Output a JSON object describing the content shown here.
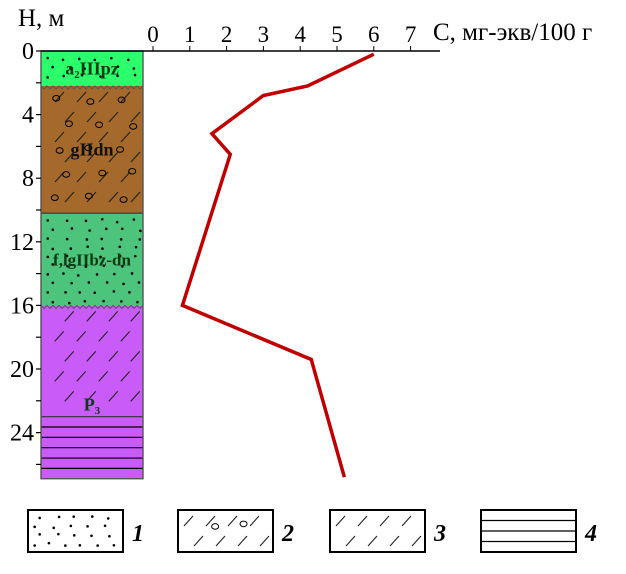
{
  "chart_data": {
    "type": "line",
    "orientation": "depth-profile",
    "y_axis": {
      "label": "H, м",
      "ticks": [
        0,
        4,
        8,
        12,
        16,
        20,
        24
      ],
      "range": [
        0,
        27
      ],
      "inverted": true
    },
    "x_axis": {
      "label": "C, мг-экв/100 г",
      "ticks": [
        0,
        1,
        2,
        3,
        4,
        5,
        6,
        7
      ],
      "range": [
        0,
        7.8
      ],
      "position": "top"
    },
    "series": [
      {
        "color": "#c00000",
        "points": [
          {
            "C": 6.0,
            "H": 0.2
          },
          {
            "C": 4.2,
            "H": 2.2
          },
          {
            "C": 3.0,
            "H": 2.8
          },
          {
            "C": 1.6,
            "H": 5.2
          },
          {
            "C": 2.1,
            "H": 6.5
          },
          {
            "C": 0.8,
            "H": 16.0
          },
          {
            "C": 4.3,
            "H": 19.4
          },
          {
            "C": 5.2,
            "H": 26.8
          }
        ]
      }
    ],
    "column": [
      {
        "label": "a₂IIIpz",
        "top": 0,
        "bottom": 2.2,
        "color": "#2cff6c",
        "pattern": "dots"
      },
      {
        "label": "gIIdn",
        "top": 2.2,
        "bottom": 10.2,
        "color": "#a4692b",
        "pattern": "pebbles-hatch"
      },
      {
        "label": "f,lgIIbz-dn",
        "top": 10.2,
        "bottom": 16.0,
        "color": "#4cc47c",
        "pattern": "dots"
      },
      {
        "label": "P₃",
        "top": 16.0,
        "bottom": 23.0,
        "color": "#c95cf8",
        "pattern": "hatch"
      },
      {
        "label": "",
        "top": 23.0,
        "bottom": 26.9,
        "color": "#c95cf8",
        "pattern": "lines"
      }
    ],
    "legend": [
      {
        "label": "1",
        "pattern": "dots"
      },
      {
        "label": "2",
        "pattern": "pebbles-hatch"
      },
      {
        "label": "3",
        "pattern": "hatch"
      },
      {
        "label": "4",
        "pattern": "lines"
      }
    ]
  }
}
